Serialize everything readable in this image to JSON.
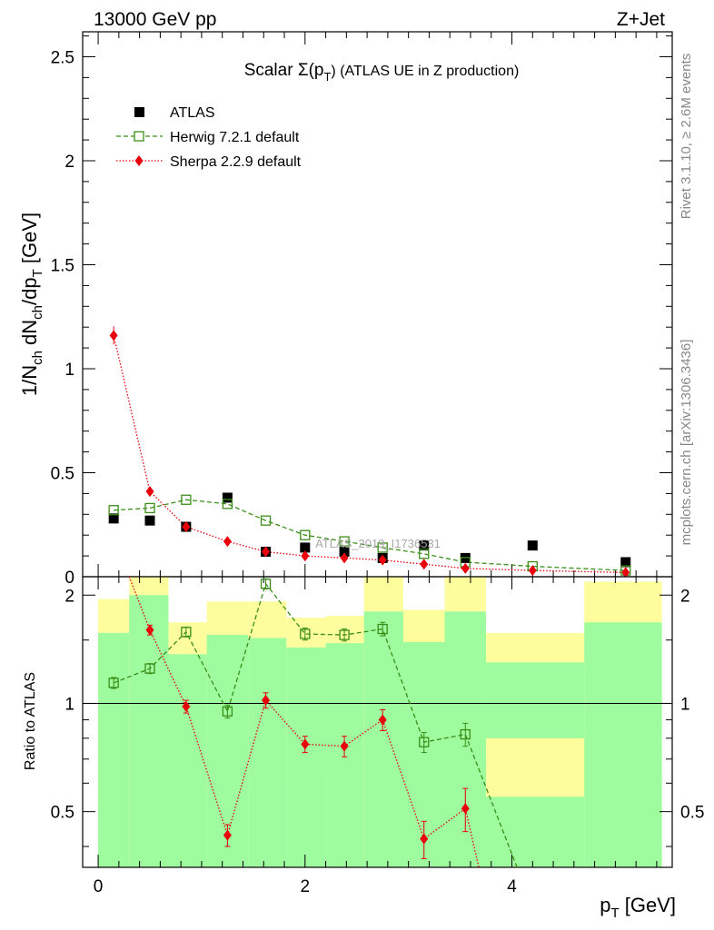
{
  "header": {
    "left": "13000 GeV pp",
    "right": "Z+Jet"
  },
  "side_labels": {
    "rivet": "Rivet 3.1.10, ≥ 2.6M events",
    "mcplots": "mcplots.cern.ch [arXiv:1306.3436]"
  },
  "watermark": "ATLAS_2019_I1736531",
  "chart_data": [
    {
      "type": "scatter",
      "title": "Scalar Σ(p_T) (ATLAS UE in Z production)",
      "title_main": "Scalar Σ(p",
      "title_sub": "T",
      "title_rest": ") (ATLAS UE in Z production)",
      "ylabel": "1/N_ch dN_ch/dp_T [GeV]",
      "xlim": [
        -0.15,
        5.55
      ],
      "ylim": [
        0,
        2.62
      ],
      "yticks": [
        0,
        0.5,
        1,
        1.5,
        2,
        2.5
      ],
      "ytick_labels": [
        "0",
        "0.5",
        "1",
        "1.5",
        "2",
        "2.5"
      ],
      "legend_position": "top-left",
      "series": [
        {
          "name": "ATLAS",
          "color": "#000000",
          "marker": "filled-square",
          "x": [
            0.15,
            0.5,
            0.85,
            1.25,
            1.62,
            2.0,
            2.38,
            2.75,
            3.15,
            3.55,
            4.2,
            5.1
          ],
          "y": [
            0.28,
            0.27,
            0.24,
            0.38,
            0.12,
            0.14,
            0.12,
            0.09,
            0.15,
            0.09,
            0.15,
            0.07
          ]
        },
        {
          "name": "Herwig 7.2.1 default",
          "color": "#3a8e18",
          "marker": "open-square",
          "line": "dashed",
          "x": [
            0.15,
            0.5,
            0.85,
            1.25,
            1.62,
            2.0,
            2.38,
            2.75,
            3.15,
            3.55,
            4.2,
            5.1
          ],
          "y": [
            0.32,
            0.33,
            0.37,
            0.35,
            0.27,
            0.2,
            0.17,
            0.14,
            0.11,
            0.07,
            0.05,
            0.03
          ]
        },
        {
          "name": "Sherpa 2.2.9 default",
          "color": "#e8000b",
          "marker": "filled-diamond",
          "line": "dotted",
          "x": [
            0.15,
            0.5,
            0.85,
            1.25,
            1.62,
            2.0,
            2.38,
            2.75,
            3.15,
            3.55,
            4.2,
            5.1
          ],
          "y": [
            1.16,
            0.41,
            0.24,
            0.17,
            0.12,
            0.1,
            0.09,
            0.08,
            0.06,
            0.04,
            0.03,
            0.02
          ]
        }
      ]
    },
    {
      "type": "scatter",
      "ylabel": "Ratio to ATLAS",
      "xlabel": "p_T [GeV]",
      "xlim": [
        -0.15,
        5.55
      ],
      "ylim": [
        0.35,
        2.25
      ],
      "xticks": [
        0,
        2,
        4
      ],
      "xtick_labels": [
        "0",
        "2",
        "4"
      ],
      "yticks": [
        0.5,
        1,
        2
      ],
      "ytick_labels": [
        "0.5",
        "1",
        "2"
      ],
      "reference_line": 1,
      "bands": {
        "x_edges": [
          0.0,
          0.3,
          0.68,
          1.05,
          1.45,
          1.82,
          2.2,
          2.57,
          2.95,
          3.35,
          3.75,
          4.7,
          5.45
        ],
        "stat_low": [
          0.35,
          0.35,
          0.35,
          0.35,
          0.35,
          0.35,
          0.35,
          0.35,
          0.35,
          0.35,
          0.35,
          0.35
        ],
        "stat_high": [
          1.57,
          2.0,
          1.37,
          1.55,
          1.52,
          1.43,
          1.47,
          1.8,
          1.48,
          1.8,
          1.3,
          1.68
        ],
        "total_low": [
          0.53,
          0.35,
          0.39,
          0.56,
          0.6,
          0.73,
          0.67,
          0.35,
          0.65,
          0.35,
          0.35,
          0.35
        ],
        "total_high": [
          1.95,
          2.25,
          1.68,
          1.92,
          1.92,
          1.73,
          1.75,
          2.25,
          1.82,
          2.25,
          1.57,
          2.18
        ],
        "extra_low": [
          null,
          null,
          null,
          null,
          null,
          null,
          null,
          null,
          null,
          null,
          0.8,
          null
        ],
        "extra_floor": [
          null,
          null,
          null,
          null,
          null,
          null,
          null,
          null,
          null,
          null,
          0.55,
          null
        ],
        "stat_color": "#9efb9e",
        "total_color": "#fdfd9e"
      },
      "series": [
        {
          "name": "Herwig 7.2.1 default",
          "color": "#3a8e18",
          "marker": "open-square",
          "line": "dashed",
          "x": [
            0.15,
            0.5,
            0.85,
            1.25,
            1.62,
            2.0,
            2.38,
            2.75,
            3.15,
            3.55,
            4.05
          ],
          "y": [
            1.14,
            1.25,
            1.58,
            0.95,
            2.15,
            1.56,
            1.55,
            1.61,
            0.78,
            0.82,
            0.35
          ],
          "err": [
            0.04,
            0.04,
            0.05,
            0.04,
            0.07,
            0.06,
            0.06,
            0.07,
            0.05,
            0.06,
            0
          ],
          "show_marker": [
            true,
            true,
            true,
            true,
            true,
            true,
            true,
            true,
            true,
            true,
            false
          ]
        },
        {
          "name": "Sherpa 2.2.9 default",
          "color": "#e8000b",
          "marker": "filled-diamond",
          "line": "dotted",
          "x": [
            0.3,
            0.5,
            0.85,
            1.25,
            1.62,
            2.0,
            2.38,
            2.75,
            3.15,
            3.55,
            3.68
          ],
          "y": [
            2.25,
            1.6,
            0.98,
            0.43,
            1.02,
            0.77,
            0.76,
            0.9,
            0.42,
            0.51,
            0.35
          ],
          "err": [
            0,
            0.05,
            0.04,
            0.03,
            0.05,
            0.04,
            0.05,
            0.06,
            0.05,
            0.07,
            0
          ],
          "show_marker": [
            false,
            true,
            true,
            true,
            true,
            true,
            true,
            true,
            true,
            true,
            false
          ]
        }
      ]
    }
  ]
}
